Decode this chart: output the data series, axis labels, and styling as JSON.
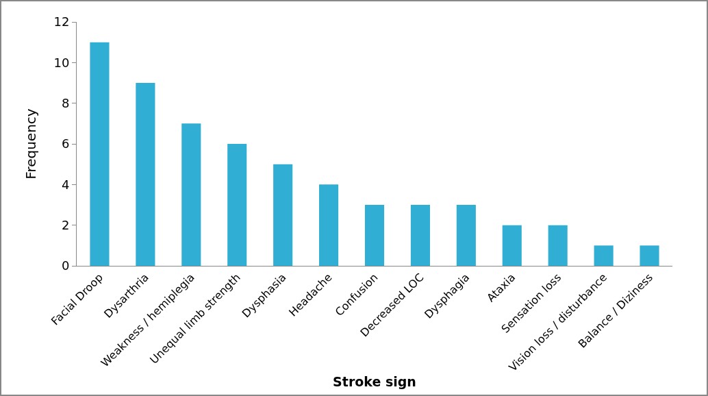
{
  "chart_data": {
    "type": "bar",
    "xlabel": "Stroke sign",
    "ylabel": "Frequency",
    "categories": [
      "Facial Droop",
      "Dysarthria",
      "Weakness / hemiplegia",
      "Unequal limb strength",
      "Dysphasia",
      "Headache",
      "Confusion",
      "Decreased LOC",
      "Dysphagia",
      "Ataxia",
      "Sensation loss",
      "Vision loss / disturbance",
      "Balance / Diziness"
    ],
    "values": [
      11,
      9,
      7,
      6,
      5,
      4,
      3,
      3,
      3,
      2,
      2,
      1,
      1
    ],
    "color": "#31aed3",
    "ylim": [
      0,
      12
    ],
    "yticks": [
      0,
      2,
      4,
      6,
      8,
      10,
      12
    ],
    "grid": false
  }
}
